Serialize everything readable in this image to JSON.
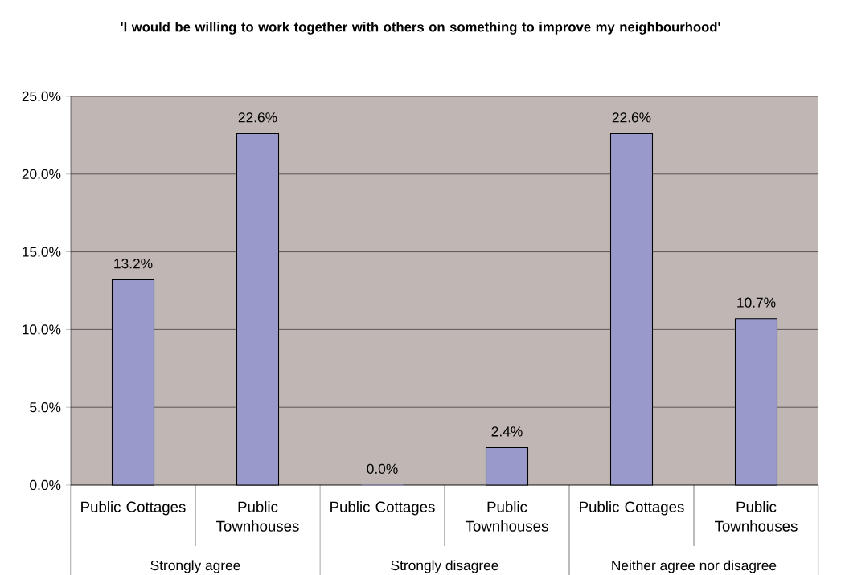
{
  "chart_data": {
    "type": "bar",
    "title": "'I would be willing to work together with others on something to improve my neighbourhood'",
    "categories": [
      "Public Cottages",
      "Public Townhouses",
      "Public Cottages",
      "Public Townhouses",
      "Public Cottages",
      "Public Townhouses"
    ],
    "values": [
      13.2,
      22.6,
      0.0,
      2.4,
      22.6,
      10.7
    ],
    "value_labels": [
      "13.2%",
      "22.6%",
      "0.0%",
      "2.4%",
      "22.6%",
      "10.7%"
    ],
    "color": "#9999cc",
    "ylim": [
      0,
      25
    ],
    "yticks": [
      {
        "value": 0,
        "label": "0.0%"
      },
      {
        "value": 5,
        "label": "5.0%"
      },
      {
        "value": 10,
        "label": "10.0%"
      },
      {
        "value": 15,
        "label": "15.0%"
      },
      {
        "value": 20,
        "label": "20.0%"
      },
      {
        "value": 25,
        "label": "25.0%"
      }
    ],
    "grid": "y",
    "annotations": [
      "Strongly agree",
      "Strongly disagree",
      "Neither agree nor disagree"
    ]
  }
}
